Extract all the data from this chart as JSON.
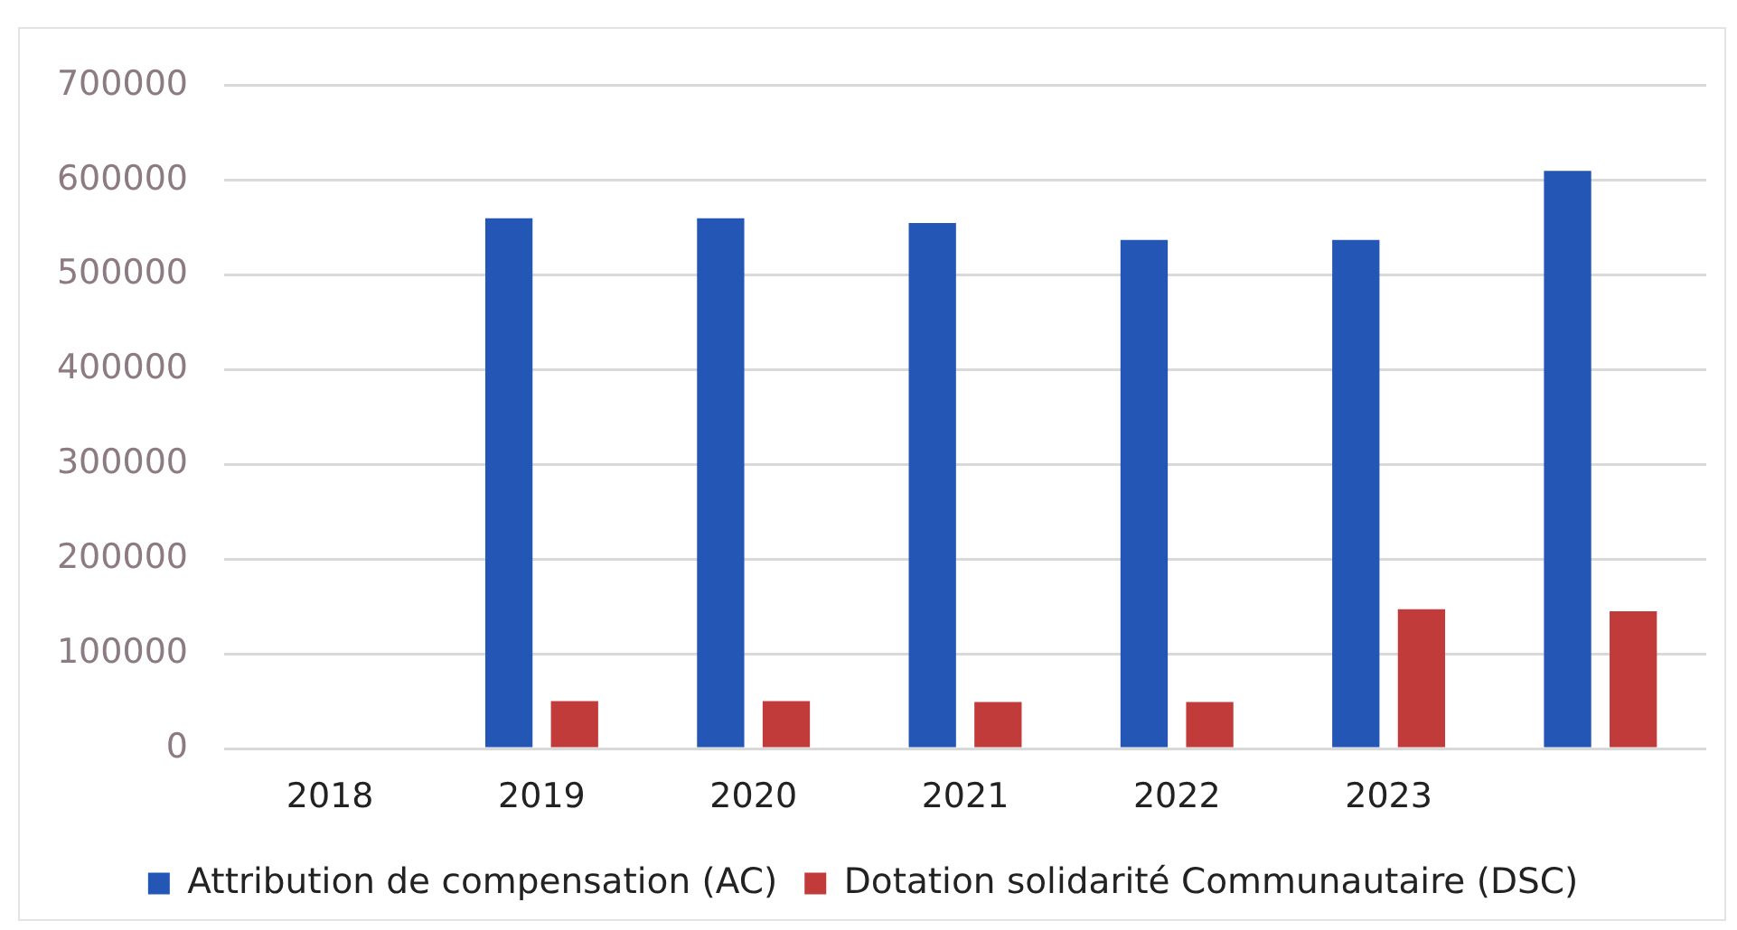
{
  "chart_data": {
    "type": "bar",
    "categories": [
      "2018",
      "2019",
      "2020",
      "2021",
      "2022",
      "2023",
      null
    ],
    "series": [
      {
        "name": "Attribution de compensation (AC)",
        "color": "#2356b5",
        "values": [
          null,
          560000,
          560000,
          555000,
          537000,
          537000,
          610000
        ]
      },
      {
        "name": "Dotation solidarité Communautaire (DSC)",
        "color": "#c23b3b",
        "values": [
          null,
          50000,
          50000,
          49000,
          49000,
          147000,
          145000
        ]
      }
    ],
    "ylim": [
      0,
      700000
    ],
    "yticks": [
      0,
      100000,
      200000,
      300000,
      400000,
      500000,
      600000,
      700000
    ],
    "grid": "y",
    "legend": "bottom"
  }
}
